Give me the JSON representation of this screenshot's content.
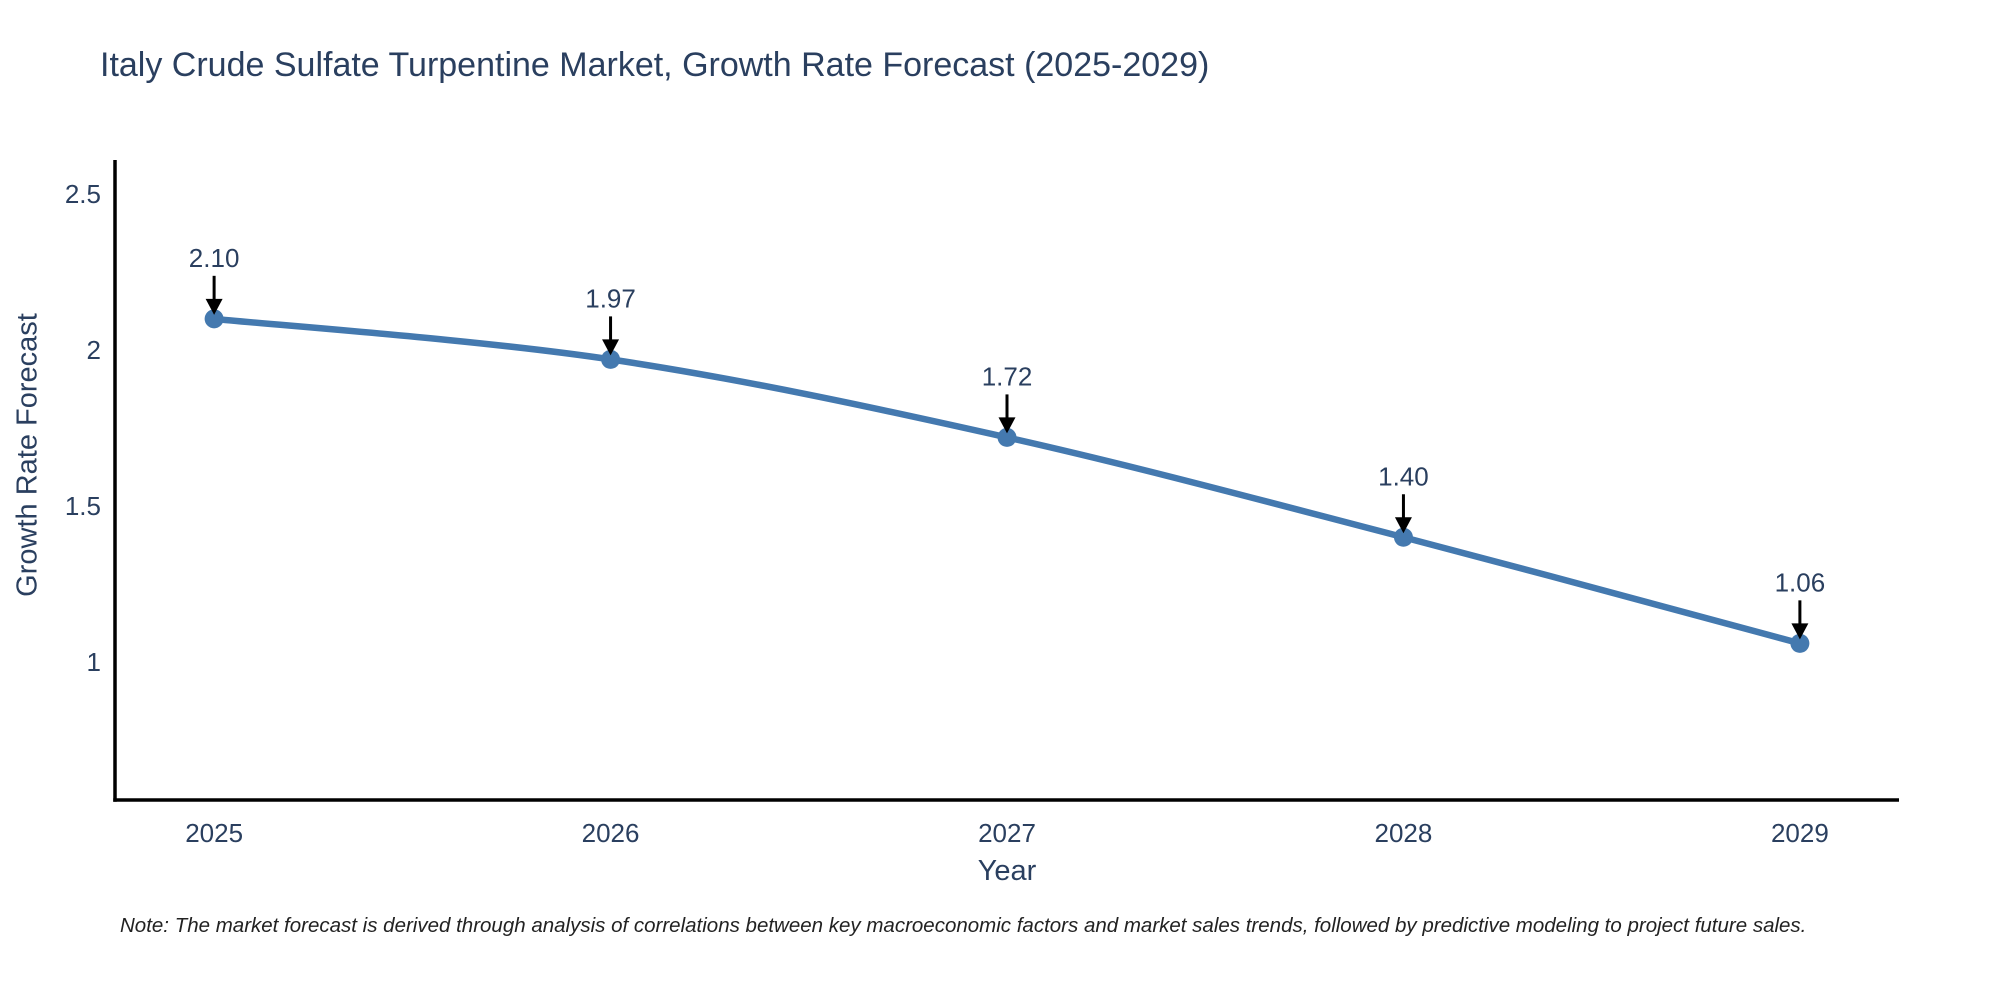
{
  "title": "Italy Crude Sulfate Turpentine Market, Growth Rate Forecast (2025-2029)",
  "note": "Note: The market forecast is derived through analysis of correlations between key macroeconomic factors and market sales trends, followed by predictive modeling to project future sales.",
  "chart_data": {
    "type": "line",
    "title": "Italy Crude Sulfate Turpentine Market, Growth Rate Forecast (2025-2029)",
    "xlabel": "Year",
    "ylabel": "Growth Rate Forecast",
    "x": [
      2025,
      2026,
      2027,
      2028,
      2029
    ],
    "values": [
      2.1,
      1.97,
      1.72,
      1.4,
      1.06
    ],
    "point_labels": [
      "2.10",
      "1.97",
      "1.72",
      "1.40",
      "1.06"
    ],
    "xtick_labels": [
      "2025",
      "2026",
      "2027",
      "2028",
      "2029"
    ],
    "yticks": [
      1,
      1.5,
      2,
      2.5
    ],
    "ytick_labels": [
      "1",
      "1.5",
      "2",
      "2.5"
    ],
    "xlim": [
      2024.75,
      2029.25
    ],
    "ylim": [
      0.558,
      2.609
    ],
    "grid": false,
    "legend": "none",
    "line_shape": "spline",
    "annotation_style": "down-arrow",
    "colors": {
      "line": "#4479af",
      "marker": "#4479af",
      "axis": "#000000",
      "text": "#2a3f5f",
      "arrow": "#000000",
      "background": "#ffffff"
    }
  }
}
